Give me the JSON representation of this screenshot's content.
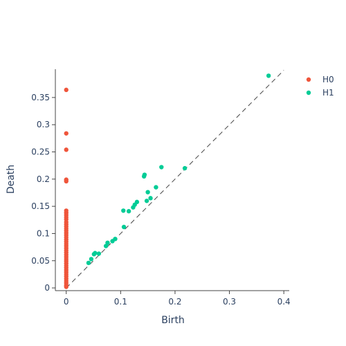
{
  "chart_data": {
    "type": "scatter",
    "title": "",
    "xlabel": "Birth",
    "ylabel": "Death",
    "xlim": [
      -0.02,
      0.41
    ],
    "ylim": [
      -0.005,
      0.402
    ],
    "x_ticks": [
      0,
      0.1,
      0.2,
      0.3,
      0.4
    ],
    "x_tick_labels": [
      "0",
      "0.1",
      "0.2",
      "0.3",
      "0.4"
    ],
    "y_ticks": [
      0,
      0.05,
      0.1,
      0.15,
      0.2,
      0.25,
      0.3,
      0.35
    ],
    "y_tick_labels": [
      "0",
      "0.05",
      "0.1",
      "0.15",
      "0.2",
      "0.25",
      "0.3",
      "0.35"
    ],
    "grid": false,
    "legend_position": "top-right",
    "diagonal": {
      "from": [
        0,
        0
      ],
      "to": [
        0.4,
        0.4
      ],
      "color": "#444444",
      "dashed": true
    },
    "series": [
      {
        "name": "H0",
        "color": "#EF553B",
        "points": [
          [
            0,
            0.364
          ],
          [
            0,
            0.284
          ],
          [
            0,
            0.254
          ],
          [
            0,
            0.199
          ],
          [
            0,
            0.196
          ],
          [
            0,
            0.142
          ],
          [
            0,
            0.138
          ],
          [
            0,
            0.134
          ],
          [
            0,
            0.13
          ],
          [
            0,
            0.126
          ],
          [
            0,
            0.121
          ],
          [
            0,
            0.117
          ],
          [
            0,
            0.113
          ],
          [
            0,
            0.109
          ],
          [
            0,
            0.105
          ],
          [
            0,
            0.101
          ],
          [
            0,
            0.097
          ],
          [
            0,
            0.093
          ],
          [
            0,
            0.089
          ],
          [
            0,
            0.085
          ],
          [
            0,
            0.081
          ],
          [
            0,
            0.077
          ],
          [
            0,
            0.073
          ],
          [
            0,
            0.069
          ],
          [
            0,
            0.065
          ],
          [
            0,
            0.061
          ],
          [
            0,
            0.057
          ],
          [
            0,
            0.053
          ],
          [
            0,
            0.049
          ],
          [
            0,
            0.045
          ],
          [
            0,
            0.041
          ],
          [
            0,
            0.037
          ],
          [
            0,
            0.033
          ],
          [
            0,
            0.029
          ],
          [
            0,
            0.025
          ],
          [
            0,
            0.021
          ],
          [
            0,
            0.017
          ],
          [
            0,
            0.013
          ],
          [
            0,
            0.009
          ],
          [
            0,
            0.005
          ],
          [
            0,
            0.002
          ]
        ]
      },
      {
        "name": "H1",
        "color": "#00CC96",
        "points": [
          [
            0.372,
            0.39
          ],
          [
            0.218,
            0.22
          ],
          [
            0.175,
            0.222
          ],
          [
            0.144,
            0.208
          ],
          [
            0.143,
            0.205
          ],
          [
            0.165,
            0.185
          ],
          [
            0.15,
            0.176
          ],
          [
            0.155,
            0.165
          ],
          [
            0.148,
            0.16
          ],
          [
            0.13,
            0.158
          ],
          [
            0.126,
            0.153
          ],
          [
            0.123,
            0.148
          ],
          [
            0.115,
            0.141
          ],
          [
            0.105,
            0.142
          ],
          [
            0.106,
            0.112
          ],
          [
            0.09,
            0.09
          ],
          [
            0.085,
            0.086
          ],
          [
            0.076,
            0.083
          ],
          [
            0.073,
            0.077
          ],
          [
            0.06,
            0.063
          ],
          [
            0.053,
            0.064
          ],
          [
            0.051,
            0.062
          ],
          [
            0.046,
            0.053
          ],
          [
            0.041,
            0.046
          ]
        ]
      }
    ]
  }
}
